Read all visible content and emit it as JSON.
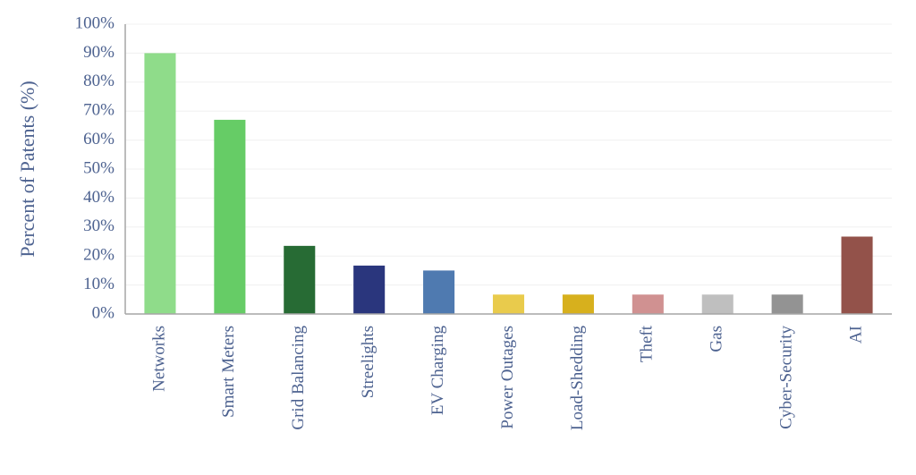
{
  "chart_data": {
    "type": "bar",
    "y_label": "Percent of Patents (%)",
    "categories": [
      "Networks",
      "Smart Meters",
      "Grid Balancing",
      "Streelights",
      "EV Charging",
      "Power Outages",
      "Load-Shedding",
      "Theft",
      "Gas",
      "Cyber-Security",
      "AI"
    ],
    "values": [
      90,
      67,
      23.5,
      16.7,
      15,
      6.7,
      6.7,
      6.7,
      6.7,
      6.7,
      26.7
    ],
    "colors": [
      "#8fdc8a",
      "#66cc66",
      "#276b34",
      "#2a367d",
      "#4f7ab0",
      "#e9cb4c",
      "#d7b01d",
      "#d09191",
      "#bfbfbf",
      "#939393",
      "#93524a"
    ],
    "ylim": [
      0,
      100
    ],
    "yticks": [
      {
        "value": 0,
        "label": "0%"
      },
      {
        "value": 10,
        "label": "10%"
      },
      {
        "value": 20,
        "label": "20%"
      },
      {
        "value": 30,
        "label": "30%"
      },
      {
        "value": 40,
        "label": "40%"
      },
      {
        "value": 50,
        "label": "50%"
      },
      {
        "value": 60,
        "label": "60%"
      },
      {
        "value": 70,
        "label": "70%"
      },
      {
        "value": 80,
        "label": "80%"
      },
      {
        "value": 90,
        "label": "90%"
      },
      {
        "value": 100,
        "label": "100%"
      }
    ],
    "grid": true
  }
}
